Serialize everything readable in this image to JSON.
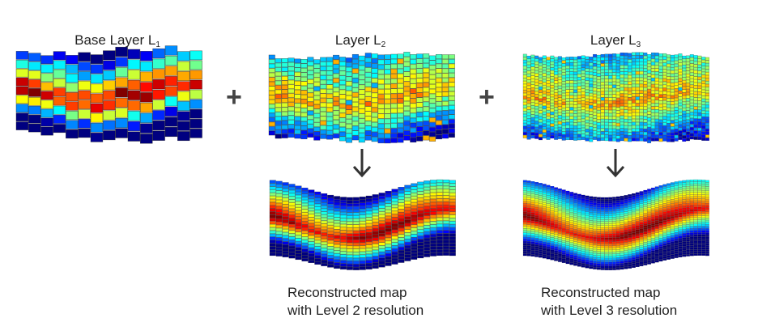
{
  "layers": [
    {
      "id": "l1",
      "title": "Base Layer L",
      "subscript": "1"
    },
    {
      "id": "l2",
      "title": "Layer L",
      "subscript": "2"
    },
    {
      "id": "l3",
      "title": "Layer L",
      "subscript": "3"
    }
  ],
  "operators": [
    "+",
    "+"
  ],
  "reconstructions": [
    {
      "id": "r2",
      "caption": "Reconstructed map\nwith Level 2 resolution"
    },
    {
      "id": "r3",
      "caption": "Reconstructed map\nwith Level 3 resolution"
    }
  ],
  "colormap": "jet"
}
